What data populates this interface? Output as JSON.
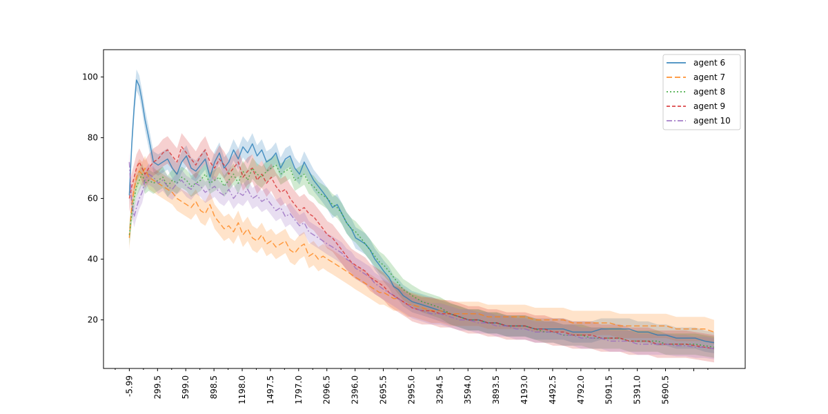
{
  "chart_data": {
    "type": "line",
    "title": "",
    "xlabel": "",
    "ylabel": "",
    "x_tick_labels": [
      "-5.99",
      "299.5",
      "599.0",
      "898.5",
      "1198.0",
      "1497.5",
      "1797.0",
      "2096.5",
      "2396.0",
      "2695.5",
      "2995.0",
      "3294.5",
      "3594.0",
      "3893.5",
      "4193.0",
      "4492.5",
      "4792.0",
      "5091.5",
      "5391.0",
      "5690.5"
    ],
    "y_ticks": [
      20,
      40,
      60,
      80,
      100
    ],
    "xlim": [
      -280,
      6530
    ],
    "ylim": [
      4,
      109
    ],
    "legend_position": "top-right",
    "shaded_band": true,
    "grid": false,
    "series": [
      {
        "name": "agent 6",
        "color": "#1f77b4",
        "dash": "solid",
        "band": 3.5,
        "x": [
          -5.99,
          20,
          45,
          70,
          100,
          130,
          160,
          200,
          250,
          300,
          350,
          400,
          450,
          500,
          550,
          600,
          650,
          700,
          750,
          800,
          850,
          900,
          950,
          1000,
          1050,
          1100,
          1150,
          1200,
          1250,
          1300,
          1350,
          1400,
          1450,
          1500,
          1550,
          1600,
          1650,
          1700,
          1750,
          1800,
          1850,
          1900,
          1950,
          2000,
          2050,
          2096.5,
          2150,
          2200,
          2250,
          2300,
          2350,
          2396,
          2450,
          2500,
          2550,
          2600,
          2650,
          2695.5,
          2750,
          2800,
          2850,
          2900,
          2950,
          2995,
          3100,
          3200,
          3294.5,
          3400,
          3500,
          3594,
          3700,
          3800,
          3893.5,
          4000,
          4100,
          4193,
          4300,
          4400,
          4492.5,
          4600,
          4700,
          4792,
          4900,
          5000,
          5091.5,
          5200,
          5300,
          5391,
          5500,
          5600,
          5690.5,
          5800,
          5900,
          6000,
          6100,
          6200
        ],
        "y": [
          61,
          78,
          90,
          99,
          97,
          92,
          86,
          80,
          72,
          71,
          72,
          73,
          70,
          68,
          72,
          74,
          70,
          69,
          71,
          73,
          67,
          72,
          75,
          70,
          72,
          76,
          73,
          77,
          75,
          78,
          74,
          76,
          72,
          73,
          75,
          70,
          73,
          74,
          70,
          68,
          72,
          69,
          66,
          64,
          62,
          60,
          57,
          58,
          55,
          52,
          50,
          47,
          46,
          45,
          43,
          40,
          38,
          36,
          34,
          31,
          30,
          28,
          27,
          26,
          25,
          24,
          23,
          22,
          21,
          20,
          20,
          19,
          19,
          18,
          18,
          18,
          17,
          17,
          17,
          17,
          16,
          16,
          16,
          17,
          17,
          17,
          17,
          16,
          16,
          15,
          15,
          14,
          14,
          14,
          13,
          12.5
        ]
      },
      {
        "name": "agent 7",
        "color": "#ff7f0e",
        "dash": "8,4",
        "band": 4,
        "x": [
          -5.99,
          20,
          45,
          70,
          100,
          130,
          160,
          200,
          250,
          300,
          350,
          400,
          450,
          500,
          550,
          600,
          650,
          700,
          750,
          800,
          850,
          900,
          950,
          1000,
          1050,
          1100,
          1150,
          1200,
          1250,
          1300,
          1350,
          1400,
          1450,
          1500,
          1550,
          1600,
          1650,
          1700,
          1750,
          1800,
          1850,
          1900,
          1950,
          2000,
          2050,
          2096.5,
          2150,
          2200,
          2250,
          2300,
          2350,
          2396,
          2450,
          2500,
          2550,
          2600,
          2650,
          2695.5,
          2750,
          2800,
          2850,
          2900,
          2950,
          2995,
          3100,
          3200,
          3294.5,
          3400,
          3500,
          3594,
          3700,
          3800,
          3893.5,
          4000,
          4100,
          4193,
          4300,
          4400,
          4492.5,
          4600,
          4700,
          4792,
          4900,
          5000,
          5091.5,
          5200,
          5300,
          5391,
          5500,
          5600,
          5690.5,
          5800,
          5900,
          6000,
          6100,
          6200
        ],
        "y": [
          47,
          58,
          63,
          67,
          69,
          68,
          70,
          67,
          66,
          65,
          64,
          63,
          62,
          60,
          59,
          58,
          57,
          59,
          56,
          55,
          58,
          54,
          52,
          50,
          51,
          49,
          52,
          48,
          50,
          47,
          46,
          48,
          45,
          46,
          44,
          45,
          46,
          43,
          42,
          44,
          45,
          41,
          42,
          40,
          41,
          40,
          39,
          38,
          37,
          36,
          35,
          34,
          33,
          32,
          31,
          30,
          29,
          29,
          28,
          27,
          27,
          26,
          25,
          25,
          24,
          23,
          23,
          22,
          22,
          22,
          22,
          21,
          21,
          21,
          21,
          21,
          20,
          20,
          20,
          20,
          19,
          19,
          19,
          19,
          19,
          18,
          18,
          18,
          18,
          18,
          18,
          17,
          17,
          17,
          17,
          16
        ]
      },
      {
        "name": "agent 8",
        "color": "#2ca02c",
        "dash": "2,3",
        "band": 3.5,
        "x": [
          -5.99,
          20,
          45,
          70,
          100,
          130,
          160,
          200,
          250,
          300,
          350,
          400,
          450,
          500,
          550,
          600,
          650,
          700,
          750,
          800,
          850,
          900,
          950,
          1000,
          1050,
          1100,
          1150,
          1200,
          1250,
          1300,
          1350,
          1400,
          1450,
          1500,
          1550,
          1600,
          1650,
          1700,
          1750,
          1800,
          1850,
          1900,
          1950,
          2000,
          2050,
          2096.5,
          2150,
          2200,
          2250,
          2300,
          2350,
          2396,
          2450,
          2500,
          2550,
          2600,
          2650,
          2695.5,
          2750,
          2800,
          2850,
          2900,
          2950,
          2995,
          3100,
          3200,
          3294.5,
          3400,
          3500,
          3594,
          3700,
          3800,
          3893.5,
          4000,
          4100,
          4193,
          4300,
          4400,
          4492.5,
          4600,
          4700,
          4792,
          4900,
          5000,
          5091.5,
          5200,
          5300,
          5391,
          5500,
          5600,
          5690.5,
          5800,
          5900,
          6000,
          6100,
          6200
        ],
        "y": [
          48,
          55,
          60,
          64,
          66,
          68,
          65,
          66,
          65,
          66,
          67,
          64,
          66,
          65,
          67,
          66,
          64,
          65,
          66,
          68,
          65,
          66,
          67,
          64,
          66,
          68,
          65,
          69,
          66,
          70,
          68,
          67,
          69,
          70,
          71,
          68,
          69,
          70,
          66,
          67,
          68,
          65,
          64,
          62,
          61,
          60,
          58,
          57,
          55,
          52,
          50,
          49,
          47,
          45,
          43,
          41,
          39,
          38,
          36,
          34,
          32,
          30,
          29,
          28,
          26,
          25,
          24,
          22,
          21,
          20,
          20,
          19,
          19,
          18,
          18,
          18,
          17,
          16,
          16,
          15,
          15,
          15,
          14,
          14,
          14,
          14,
          13,
          13,
          13,
          13,
          12,
          12,
          12,
          12,
          11.5,
          11
        ]
      },
      {
        "name": "agent 9",
        "color": "#d62728",
        "dash": "5,3",
        "band": 4.5,
        "x": [
          -5.99,
          20,
          45,
          70,
          100,
          130,
          160,
          200,
          250,
          300,
          350,
          400,
          450,
          500,
          550,
          600,
          650,
          700,
          750,
          800,
          850,
          900,
          950,
          1000,
          1050,
          1100,
          1150,
          1200,
          1250,
          1300,
          1350,
          1400,
          1450,
          1500,
          1550,
          1600,
          1650,
          1700,
          1750,
          1800,
          1850,
          1900,
          1950,
          2000,
          2050,
          2096.5,
          2150,
          2200,
          2250,
          2300,
          2350,
          2396,
          2450,
          2500,
          2550,
          2600,
          2650,
          2695.5,
          2750,
          2800,
          2850,
          2900,
          2950,
          2995,
          3100,
          3200,
          3294.5,
          3400,
          3500,
          3594,
          3700,
          3800,
          3893.5,
          4000,
          4100,
          4193,
          4300,
          4400,
          4492.5,
          4600,
          4700,
          4792,
          4900,
          5000,
          5091.5,
          5200,
          5300,
          5391,
          5500,
          5600,
          5690.5,
          5800,
          5900,
          6000,
          6100,
          6200
        ],
        "y": [
          60,
          64,
          67,
          70,
          72,
          70,
          68,
          70,
          72,
          73,
          75,
          76,
          74,
          72,
          77,
          75,
          73,
          71,
          74,
          76,
          72,
          70,
          73,
          71,
          68,
          70,
          72,
          67,
          69,
          70,
          66,
          68,
          65,
          67,
          64,
          62,
          63,
          60,
          58,
          56,
          57,
          55,
          54,
          52,
          50,
          48,
          47,
          45,
          43,
          41,
          39,
          38,
          37,
          36,
          34,
          33,
          32,
          31,
          29,
          28,
          27,
          26,
          25,
          24,
          23,
          23,
          22,
          22,
          21,
          20,
          20,
          19,
          19,
          18,
          18,
          18,
          17,
          17,
          16,
          16,
          15,
          15,
          15,
          14,
          14,
          14,
          13,
          13,
          13,
          12,
          12,
          12,
          12,
          11.5,
          11,
          10.5
        ]
      },
      {
        "name": "agent 10",
        "color": "#9467bd",
        "dash": "8,3,2,3",
        "band": 3.5,
        "x": [
          -5.99,
          20,
          45,
          70,
          100,
          130,
          160,
          200,
          250,
          300,
          350,
          400,
          450,
          500,
          550,
          600,
          650,
          700,
          750,
          800,
          850,
          900,
          950,
          1000,
          1050,
          1100,
          1150,
          1200,
          1250,
          1300,
          1350,
          1400,
          1450,
          1500,
          1550,
          1600,
          1650,
          1700,
          1750,
          1800,
          1850,
          1900,
          1950,
          2000,
          2050,
          2096.5,
          2150,
          2200,
          2250,
          2300,
          2350,
          2396,
          2450,
          2500,
          2550,
          2600,
          2650,
          2695.5,
          2750,
          2800,
          2850,
          2900,
          2950,
          2995,
          3100,
          3200,
          3294.5,
          3400,
          3500,
          3594,
          3700,
          3800,
          3893.5,
          4000,
          4100,
          4193,
          4300,
          4400,
          4492.5,
          4600,
          4700,
          4792,
          4900,
          5000,
          5091.5,
          5200,
          5300,
          5391,
          5500,
          5600,
          5690.5,
          5800,
          5900,
          6000,
          6100,
          6200
        ],
        "y": [
          72,
          58,
          54,
          57,
          60,
          62,
          66,
          68,
          67,
          65,
          66,
          64,
          63,
          65,
          66,
          64,
          63,
          65,
          64,
          62,
          63,
          64,
          62,
          61,
          63,
          60,
          62,
          61,
          63,
          60,
          61,
          59,
          60,
          58,
          56,
          57,
          54,
          55,
          53,
          51,
          52,
          49,
          48,
          47,
          46,
          45,
          44,
          43,
          42,
          40,
          39,
          37,
          36,
          35,
          34,
          32,
          31,
          30,
          29,
          28,
          27,
          26,
          25,
          24,
          23,
          22,
          22,
          21,
          20,
          20,
          19,
          19,
          18,
          18,
          17,
          17,
          16,
          16,
          16,
          15,
          15,
          14,
          14,
          14,
          13,
          13,
          13,
          12,
          12,
          12,
          12,
          11.5,
          11.5,
          11,
          11,
          10.5
        ]
      }
    ]
  }
}
